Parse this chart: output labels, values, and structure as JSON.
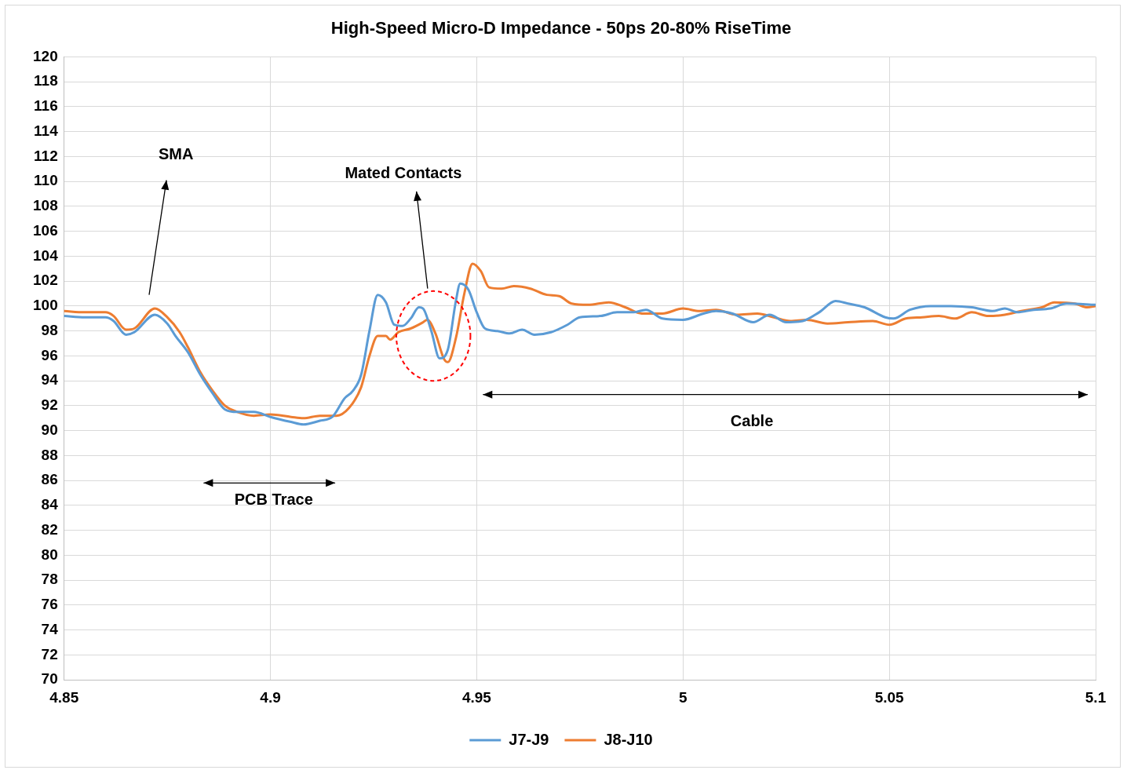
{
  "chart_data": {
    "type": "line",
    "title": "High-Speed Micro-D Impedance - 50ps 20-80% RiseTime",
    "xlim": [
      4.85,
      5.1
    ],
    "xticks": [
      4.85,
      4.9,
      4.95,
      5,
      5.05,
      5.1
    ],
    "ylim": [
      70,
      120
    ],
    "yticks": [
      70,
      72,
      74,
      76,
      78,
      80,
      82,
      84,
      86,
      88,
      90,
      92,
      94,
      96,
      98,
      100,
      102,
      104,
      106,
      108,
      110,
      112,
      114,
      116,
      118,
      120
    ],
    "grid": true,
    "legend": "bottom",
    "marker": "none",
    "line_style": "solid",
    "annotations": [
      "SMA",
      "Mated Contacts",
      "PCB Trace",
      "Cable"
    ],
    "series": [
      {
        "name": "J7-J9",
        "color": "#5b9bd5",
        "x": [
          4.85,
          4.855,
          4.86,
          4.862,
          4.865,
          4.867,
          4.872,
          4.875,
          4.877,
          4.88,
          4.883,
          4.886,
          4.889,
          4.892,
          4.896,
          4.9,
          4.905,
          4.908,
          4.912,
          4.915,
          4.918,
          4.92,
          4.922,
          4.924,
          4.926,
          4.928,
          4.93,
          4.932,
          4.934,
          4.936,
          4.937,
          4.939,
          4.941,
          4.943,
          4.945,
          4.946,
          4.948,
          4.95,
          4.952,
          4.955,
          4.958,
          4.961,
          4.964,
          4.968,
          4.972,
          4.975,
          4.98,
          4.984,
          4.988,
          4.991,
          4.995,
          5.0,
          5.005,
          5.008,
          5.012,
          5.017,
          5.021,
          5.025,
          5.029,
          5.033,
          5.037,
          5.04,
          5.044,
          5.049,
          5.051,
          5.055,
          5.06,
          5.065,
          5.07,
          5.075,
          5.078,
          5.081,
          5.085,
          5.089,
          5.093,
          5.1
        ],
        "values": [
          99.2,
          99.1,
          99.1,
          98.8,
          97.7,
          97.9,
          99.3,
          98.6,
          97.6,
          96.3,
          94.5,
          93.0,
          91.7,
          91.5,
          91.5,
          91.1,
          90.7,
          90.5,
          90.8,
          91.1,
          92.6,
          93.2,
          94.5,
          98.0,
          100.9,
          100.3,
          98.5,
          98.4,
          99.0,
          99.9,
          99.8,
          98.0,
          95.8,
          96.5,
          100.5,
          101.8,
          101.3,
          99.5,
          98.2,
          98.0,
          97.8,
          98.1,
          97.7,
          97.9,
          98.5,
          99.1,
          99.2,
          99.5,
          99.5,
          99.7,
          99.0,
          98.9,
          99.4,
          99.6,
          99.4,
          98.7,
          99.3,
          98.7,
          98.8,
          99.5,
          100.4,
          100.2,
          99.9,
          99.1,
          99.0,
          99.7,
          100.0,
          100.0,
          99.9,
          99.6,
          99.8,
          99.5,
          99.7,
          99.8,
          100.2,
          100.1
        ]
      },
      {
        "name": "J8-J10",
        "color": "#ed7d31",
        "x": [
          4.85,
          4.855,
          4.86,
          4.862,
          4.865,
          4.867,
          4.872,
          4.875,
          4.878,
          4.88,
          4.883,
          4.886,
          4.889,
          4.892,
          4.896,
          4.9,
          4.905,
          4.908,
          4.912,
          4.916,
          4.919,
          4.922,
          4.924,
          4.926,
          4.928,
          4.929,
          4.931,
          4.934,
          4.937,
          4.938,
          4.94,
          4.942,
          4.943,
          4.945,
          4.947,
          4.949,
          4.951,
          4.953,
          4.956,
          4.959,
          4.963,
          4.967,
          4.97,
          4.973,
          4.977,
          4.982,
          4.986,
          4.99,
          4.995,
          5.0,
          5.004,
          5.008,
          5.013,
          5.018,
          5.022,
          5.026,
          5.03,
          5.035,
          5.04,
          5.046,
          5.05,
          5.054,
          5.058,
          5.062,
          5.066,
          5.07,
          5.074,
          5.078,
          5.082,
          5.087,
          5.09,
          5.095,
          5.098,
          5.1
        ],
        "values": [
          99.6,
          99.5,
          99.5,
          99.2,
          98.1,
          98.2,
          99.8,
          99.1,
          97.9,
          96.7,
          94.7,
          93.2,
          92.0,
          91.5,
          91.2,
          91.3,
          91.1,
          91.0,
          91.2,
          91.2,
          91.8,
          93.5,
          96.0,
          97.6,
          97.6,
          97.3,
          97.9,
          98.2,
          98.7,
          98.9,
          97.8,
          95.8,
          95.5,
          97.5,
          101.0,
          103.4,
          102.8,
          101.5,
          101.4,
          101.6,
          101.4,
          100.9,
          100.8,
          100.2,
          100.1,
          100.3,
          99.9,
          99.4,
          99.4,
          99.8,
          99.6,
          99.7,
          99.3,
          99.4,
          99.1,
          98.8,
          98.9,
          98.6,
          98.7,
          98.8,
          98.5,
          99.0,
          99.1,
          99.2,
          99.0,
          99.5,
          99.2,
          99.3,
          99.6,
          99.9,
          100.3,
          100.2,
          99.9,
          100.0
        ]
      }
    ]
  }
}
